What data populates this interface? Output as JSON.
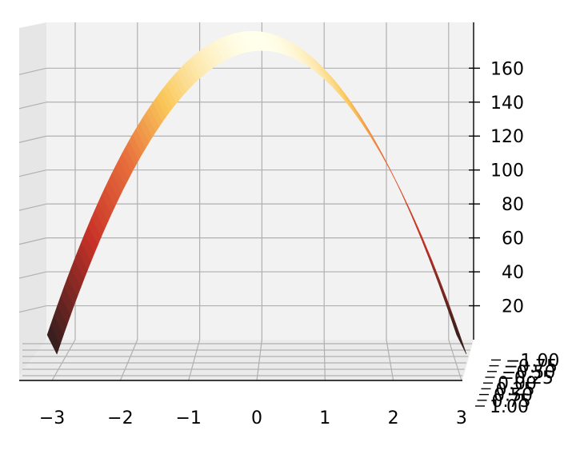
{
  "chart_data": {
    "type": "surface3d",
    "title": "",
    "xlabel": "",
    "ylabel": "",
    "zlabel": "",
    "colormap": "hot",
    "grid": true,
    "function": "z = 180 - 20*x^2",
    "x_range": [
      -3,
      3
    ],
    "y_range": [
      -1,
      1
    ],
    "z_range": [
      0,
      180
    ],
    "x_ticks": [
      "−3",
      "−2",
      "−1",
      "0",
      "1",
      "2",
      "3"
    ],
    "x_tick_values": [
      -3,
      -2,
      -1,
      0,
      1,
      2,
      3
    ],
    "y_ticks": [
      "−1.00",
      "−0.75",
      "−0.50",
      "−0.25",
      "0.00",
      "0.25",
      "0.50",
      "0.75",
      "1.00"
    ],
    "z_ticks": [
      "20",
      "40",
      "60",
      "80",
      "100",
      "120",
      "140",
      "160"
    ],
    "z_tick_values": [
      20,
      40,
      60,
      80,
      100,
      120,
      140,
      160
    ],
    "profile": {
      "x": [
        -3,
        -2.5,
        -2,
        -1.5,
        -1,
        -0.5,
        0,
        0.5,
        1,
        1.5,
        2,
        2.5,
        3
      ],
      "z": [
        0,
        55,
        100,
        135,
        160,
        175,
        180,
        175,
        160,
        135,
        100,
        55,
        0
      ]
    }
  }
}
